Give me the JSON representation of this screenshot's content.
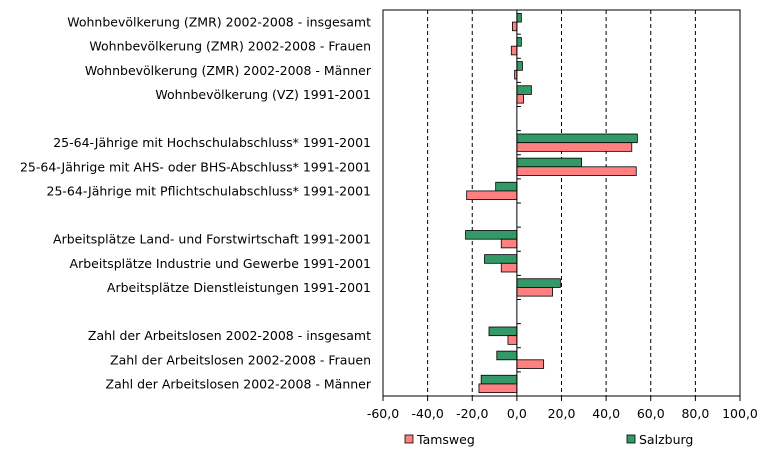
{
  "chart_data": {
    "type": "bar",
    "orientation": "horizontal",
    "categories": [
      "Wohnbevölkerung (ZMR) 2002-2008 - insgesamt",
      "Wohnbevölkerung (ZMR) 2002-2008 - Frauen",
      "Wohnbevölkerung (ZMR) 2002-2008 - Männer",
      "Wohnbevölkerung (VZ) 1991-2001",
      "",
      "25-64-Jährige mit Hochschulabschluss* 1991-2001",
      "25-64-Jährige mit AHS- oder BHS-Abschluss* 1991-2001",
      "25-64-Jährige mit Pflichtschulabschluss* 1991-2001",
      "",
      "Arbeitsplätze Land- und Forstwirtschaft 1991-2001",
      "Arbeitsplätze Industrie und Gewerbe 1991-2001",
      "Arbeitsplätze Dienstleistungen 1991-2001",
      "",
      "Zahl der Arbeitslosen 2002-2008 - insgesamt",
      "Zahl der Arbeitslosen 2002-2008 - Frauen",
      "Zahl der Arbeitslosen 2002-2008 - Männer"
    ],
    "series": [
      {
        "name": "Salzburg",
        "color": "#339966",
        "values": [
          2.0,
          2.0,
          2.5,
          6.5,
          null,
          54.0,
          29.0,
          -9.5,
          null,
          -23.0,
          -14.5,
          19.5,
          null,
          -12.5,
          -9.0,
          -16.0
        ]
      },
      {
        "name": "Tamsweg",
        "color": "#ff8080",
        "values": [
          -2.0,
          -2.5,
          -1.0,
          3.0,
          null,
          51.5,
          53.5,
          -22.5,
          null,
          -7.0,
          -7.0,
          16.0,
          null,
          -4.0,
          12.0,
          -17.0
        ]
      }
    ],
    "xlim": [
      -60,
      100
    ],
    "xticks": [
      -60,
      -40,
      -20,
      0,
      20,
      40,
      60,
      80,
      100
    ],
    "xtick_labels": [
      "-60,0",
      "-40,0",
      "-20,0",
      "0,0",
      "20,0",
      "40,0",
      "60,0",
      "80,0",
      "100,0"
    ],
    "gridlines": "vertical-dashed",
    "legend": {
      "placement": "bottom",
      "items": [
        {
          "label": "Tamsweg",
          "color": "#ff8080"
        },
        {
          "label": "Salzburg",
          "color": "#339966"
        }
      ]
    },
    "title": "",
    "xlabel": "",
    "ylabel": ""
  }
}
